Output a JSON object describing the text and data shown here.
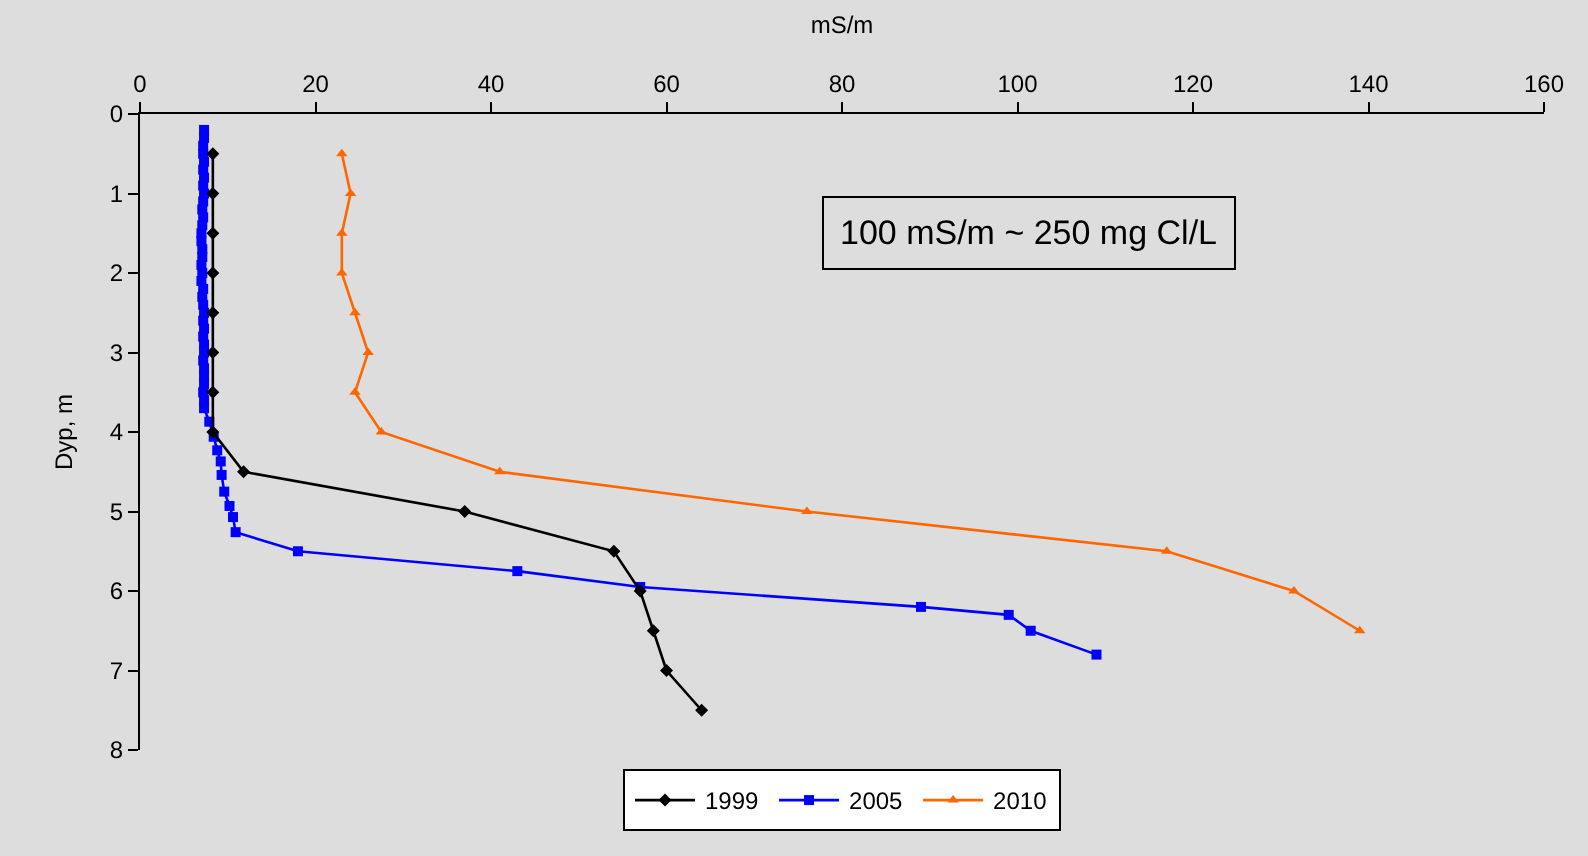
{
  "chart_data": {
    "type": "line",
    "xlabel": "mS/m",
    "ylabel": "Dyp, m",
    "xlim": [
      0,
      160
    ],
    "xticks": [
      0,
      20,
      40,
      60,
      80,
      100,
      120,
      140,
      160
    ],
    "ylim": [
      8,
      0
    ],
    "yticks": [
      0,
      1,
      2,
      3,
      4,
      5,
      6,
      7,
      8
    ],
    "grid": false,
    "legend": "bottom",
    "line_style": "solid",
    "annotations": [
      "100 mS/m ~ 250 mg Cl/L"
    ],
    "series": [
      {
        "name": "1999",
        "color": "#000000",
        "marker": "diamond",
        "x": [
          8.3,
          8.3,
          8.3,
          8.3,
          8.3,
          8.3,
          8.3,
          8.3,
          11.8,
          37,
          54,
          57,
          58.5,
          60,
          64
        ],
        "values": [
          0.5,
          1,
          1.5,
          2,
          2.5,
          3,
          3.5,
          4,
          4.5,
          5,
          5.5,
          6,
          6.5,
          7,
          7.5
        ]
      },
      {
        "name": "2005",
        "color": "#0000ff",
        "marker": "square",
        "x": [
          7.3,
          7.3,
          7.2,
          7.2,
          7.3,
          7.2,
          7.3,
          7.2,
          7.3,
          7.2,
          7.1,
          7.2,
          7.1,
          7.0,
          7.0,
          7.1,
          7.1,
          7.0,
          7.1,
          7.0,
          7.2,
          7.1,
          7.2,
          7.3,
          7.2,
          7.3,
          7.2,
          7.3,
          7.3,
          7.2,
          7.3,
          7.3,
          7.3,
          7.2,
          7.3,
          7.3,
          7.9,
          8.4,
          8.8,
          9.2,
          9.3,
          9.6,
          10.2,
          10.6,
          10.9,
          18,
          43,
          57,
          89,
          99,
          101.5,
          109
        ],
        "values": [
          0.2,
          0.3,
          0.4,
          0.5,
          0.6,
          0.7,
          0.8,
          0.9,
          1.0,
          1.1,
          1.2,
          1.3,
          1.4,
          1.5,
          1.6,
          1.7,
          1.8,
          1.9,
          2.0,
          2.1,
          2.2,
          2.3,
          2.4,
          2.5,
          2.6,
          2.7,
          2.8,
          2.9,
          3.0,
          3.1,
          3.2,
          3.3,
          3.4,
          3.5,
          3.6,
          3.7,
          3.87,
          4.06,
          4.23,
          4.37,
          4.54,
          4.75,
          4.93,
          5.07,
          5.26,
          5.5,
          5.75,
          5.95,
          6.2,
          6.3,
          6.5,
          6.8
        ]
      },
      {
        "name": "2010",
        "color": "#ff6600",
        "marker": "triangle",
        "x": [
          23,
          24,
          23,
          23,
          24.5,
          26,
          24.5,
          27.5,
          41,
          76,
          117,
          131.5,
          139
        ],
        "values": [
          0.5,
          1,
          1.5,
          2,
          2.5,
          3,
          3.5,
          4,
          4.5,
          5,
          5.5,
          6,
          6.5
        ]
      }
    ]
  }
}
